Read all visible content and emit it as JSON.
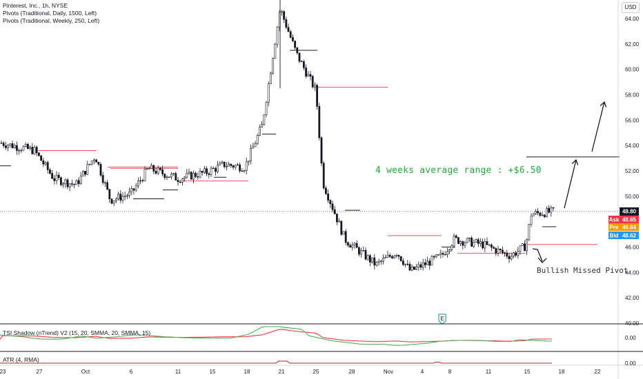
{
  "header": {
    "title": "Pinterest, Inc., 1h, NYSE",
    "indicators": [
      "Pivots (Traditional, Daily, 1500, Left)",
      "Pivots (Traditional, Weekly, 250, Left)"
    ],
    "currency_button": "USD"
  },
  "annotations": {
    "range_text": "4 weeks average range : +$6.50",
    "pivot_text": "Bullish Missed Pivot"
  },
  "quotes": {
    "last": {
      "label": "",
      "value": "48.80",
      "color": "#131722"
    },
    "ask": {
      "label": "Ask",
      "value": "48.65",
      "color": "#f23645"
    },
    "pre": {
      "label": "Pre",
      "value": "48.64",
      "color": "#ff9800"
    },
    "bid": {
      "label": "Bid",
      "value": "48.62",
      "color": "#2196f3"
    }
  },
  "colors": {
    "pivot_red": "#f23645",
    "pivot_black": "#131722",
    "tsi_green": "#4caf50",
    "tsi_red": "#f23645",
    "atr": "#b71c1c",
    "annotation_green": "#22ab3b"
  },
  "indicator_panes": {
    "tsi": {
      "label": "TSI Shadow (nTrend) V2 (15, 20, SMMA, 20, SMMA, 15)",
      "axis_label": "0.00"
    },
    "atr": {
      "label": "ATR (4, RMA)",
      "axis_label": "0.00"
    }
  },
  "marker_icon": "earnings-E-icon",
  "chart_data": {
    "type": "candlestick",
    "title": "Pinterest, Inc., 1h, NYSE",
    "ylim": [
      40,
      65
    ],
    "y_ticks": [
      "40.00",
      "42.00",
      "44.00",
      "46.00",
      "48.00",
      "50.00",
      "52.00",
      "54.00",
      "56.00",
      "58.00",
      "60.00",
      "62.00",
      "64.00"
    ],
    "x_ticks": [
      "23",
      "27",
      "Oct",
      "6",
      "11",
      "15",
      "18",
      "21",
      "25",
      "28",
      "Nov",
      "4",
      "8",
      "11",
      "15",
      "18",
      "22"
    ],
    "last_price": 48.8,
    "dotted_price_line": 48.8,
    "price_path": [
      {
        "x": "23",
        "price": 54.2
      },
      {
        "x": "27",
        "price": 53.6
      },
      {
        "x": "27b",
        "price": 51.4
      },
      {
        "x": "Oct",
        "price": 50.9
      },
      {
        "x": "Oct b",
        "price": 53.2
      },
      {
        "x": "Oct c",
        "price": 49.7
      },
      {
        "x": "6",
        "price": 50.2
      },
      {
        "x": "6b",
        "price": 52.2
      },
      {
        "x": "11",
        "price": 51.4
      },
      {
        "x": "15",
        "price": 51.9
      },
      {
        "x": "15b",
        "price": 52.5
      },
      {
        "x": "18",
        "price": 52.3
      },
      {
        "x": "18b",
        "price": 55.6
      },
      {
        "x": "21",
        "price": 64.8
      },
      {
        "x": "21b",
        "price": 61.2
      },
      {
        "x": "25",
        "price": 58.3
      },
      {
        "x": "25b",
        "price": 51.1
      },
      {
        "x": "28",
        "price": 46.6
      },
      {
        "x": "Nov",
        "price": 44.6
      },
      {
        "x": "Nov b",
        "price": 45.6
      },
      {
        "x": "4",
        "price": 44.1
      },
      {
        "x": "4b",
        "price": 45.3
      },
      {
        "x": "8",
        "price": 46.6
      },
      {
        "x": "11",
        "price": 46.2
      },
      {
        "x": "11b",
        "price": 45.3
      },
      {
        "x": "15",
        "price": 46.1
      },
      {
        "x": "15b",
        "price": 48.6
      },
      {
        "x": "18",
        "price": 48.8
      }
    ],
    "pivot_levels": [
      {
        "price": 53.6,
        "color": "red"
      },
      {
        "price": 52.3,
        "color": "red"
      },
      {
        "price": 51.2,
        "color": "red"
      },
      {
        "price": 52.2,
        "color": "red"
      },
      {
        "price": 58.6,
        "color": "red"
      },
      {
        "price": 46.9,
        "color": "red"
      },
      {
        "price": 45.5,
        "color": "red"
      },
      {
        "price": 46.2,
        "color": "red"
      },
      {
        "price": 53.1,
        "color": "black"
      },
      {
        "price": 61.5,
        "color": "black"
      },
      {
        "price": 54.9,
        "color": "black"
      },
      {
        "price": 48.9,
        "color": "black"
      }
    ],
    "series": [
      {
        "name": "TSI Shadow (nTrend) V2 (15, 20, SMMA, 20, SMMA, 15)",
        "color": "green"
      },
      {
        "name": "TSI signal",
        "color": "red"
      },
      {
        "name": "ATR (4, RMA)",
        "color": "dark red"
      }
    ]
  }
}
